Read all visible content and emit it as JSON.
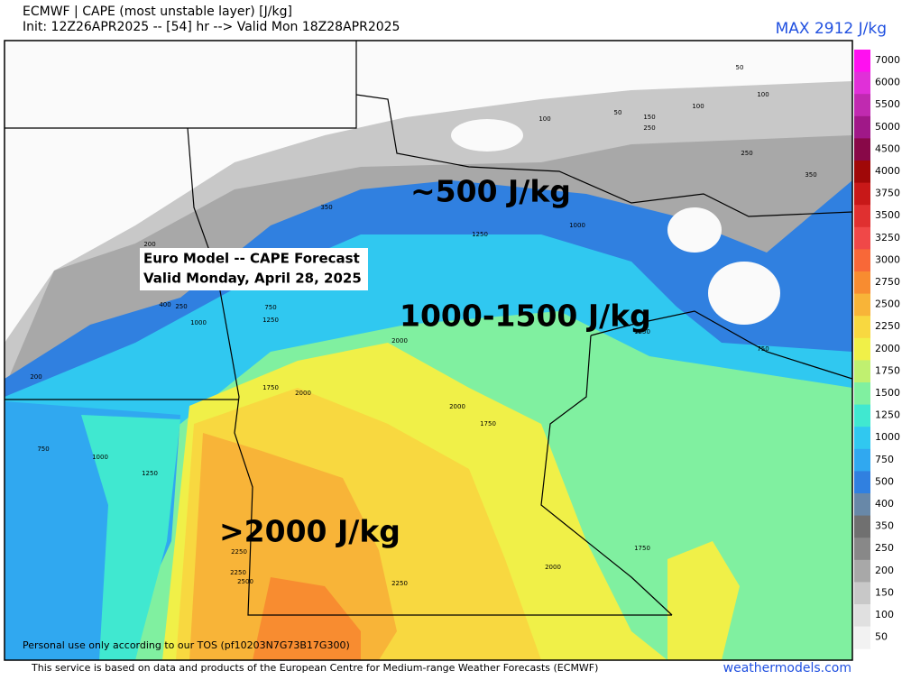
{
  "header": {
    "line1": "ECMWF | CAPE (most unstable layer) [J/kg]",
    "line2": "Init: 12Z26APR2025 -- [54] hr --> Valid Mon 18Z28APR2025",
    "max": "MAX 2912 J/kg"
  },
  "colorbar": [
    {
      "label": "7000",
      "color": "#ff10f0"
    },
    {
      "label": "6000",
      "color": "#e030d8"
    },
    {
      "label": "5500",
      "color": "#c02ab0"
    },
    {
      "label": "5000",
      "color": "#a01888"
    },
    {
      "label": "4500",
      "color": "#880848"
    },
    {
      "label": "4000",
      "color": "#a00808"
    },
    {
      "label": "3750",
      "color": "#c81818"
    },
    {
      "label": "3500",
      "color": "#e03030"
    },
    {
      "label": "3250",
      "color": "#f04848"
    },
    {
      "label": "3000",
      "color": "#f86838"
    },
    {
      "label": "2750",
      "color": "#f88c30"
    },
    {
      "label": "2500",
      "color": "#f8b438"
    },
    {
      "label": "2250",
      "color": "#f8d840"
    },
    {
      "label": "2000",
      "color": "#f0f048"
    },
    {
      "label": "1750",
      "color": "#c0f070"
    },
    {
      "label": "1500",
      "color": "#80f0a0"
    },
    {
      "label": "1250",
      "color": "#40e8d0"
    },
    {
      "label": "1000",
      "color": "#30c8f0"
    },
    {
      "label": "750",
      "color": "#30a8f0"
    },
    {
      "label": "500",
      "color": "#3080e0"
    },
    {
      "label": "400",
      "color": "#6888a8"
    },
    {
      "label": "350",
      "color": "#707070"
    },
    {
      "label": "250",
      "color": "#888888"
    },
    {
      "label": "200",
      "color": "#a8a8a8"
    },
    {
      "label": "150",
      "color": "#c8c8c8"
    },
    {
      "label": "100",
      "color": "#e0e0e0"
    },
    {
      "label": "50",
      "color": "#f2f2f2"
    }
  ],
  "annotations": {
    "low": "~500 J/kg",
    "mid": "1000-1500 J/kg",
    "high": ">2000 J/kg",
    "box_line1": "Euro Model -- CAPE Forecast",
    "box_line2": "Valid Monday, April 28, 2025"
  },
  "contour_labels": [
    "50",
    "100",
    "100",
    "150",
    "250",
    "50",
    "100",
    "250",
    "350",
    "1000",
    "1250",
    "750",
    "1250",
    "1000",
    "2000",
    "1750",
    "2000",
    "2000",
    "1750",
    "750",
    "1000",
    "1250",
    "2250",
    "2250",
    "2500",
    "2250",
    "2000",
    "1750",
    "1250",
    "750",
    "350",
    "200",
    "200",
    "400",
    "250"
  ],
  "footer": {
    "tos": "Personal use only according to our TOS (pf10203N7G73B17G300)",
    "source": "This service is based on data and products of the European Centre for Medium-range Weather Forecasts (ECMWF)",
    "site": "weathermodels.com"
  }
}
